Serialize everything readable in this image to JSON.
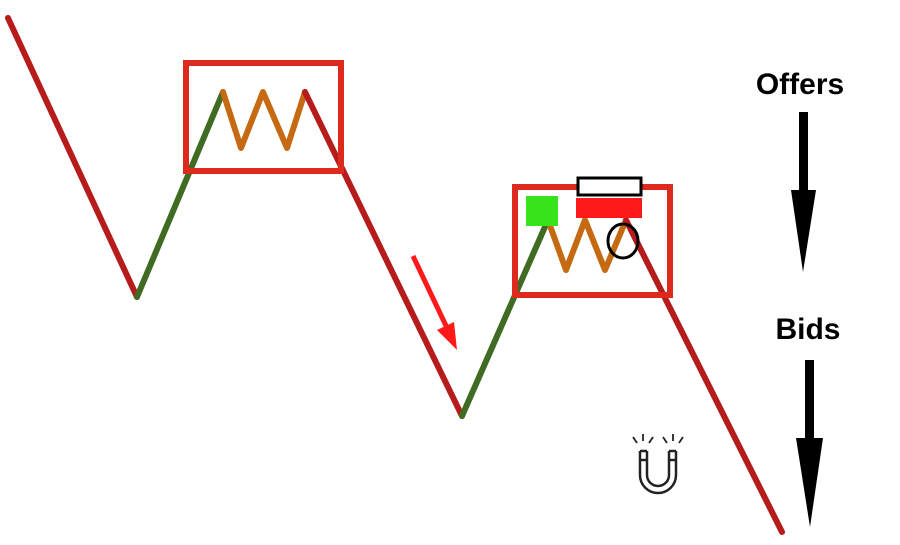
{
  "labels": {
    "offers": "Offers",
    "bids": "Bids"
  },
  "icons": {
    "down_arrow": "arrow-down-icon",
    "magnet": "magnet-icon",
    "momentum_arrow": "red-arrow-icon"
  },
  "colors": {
    "background": "#ffffff",
    "down_leg": "#b71c1c",
    "up_leg": "#3f6b23",
    "consolidation": "#c56a12",
    "box_outline": "#dd2a1d",
    "buy_marker": "#39e31c",
    "sell_marker": "#ff1a1a",
    "text": "#000000"
  }
}
